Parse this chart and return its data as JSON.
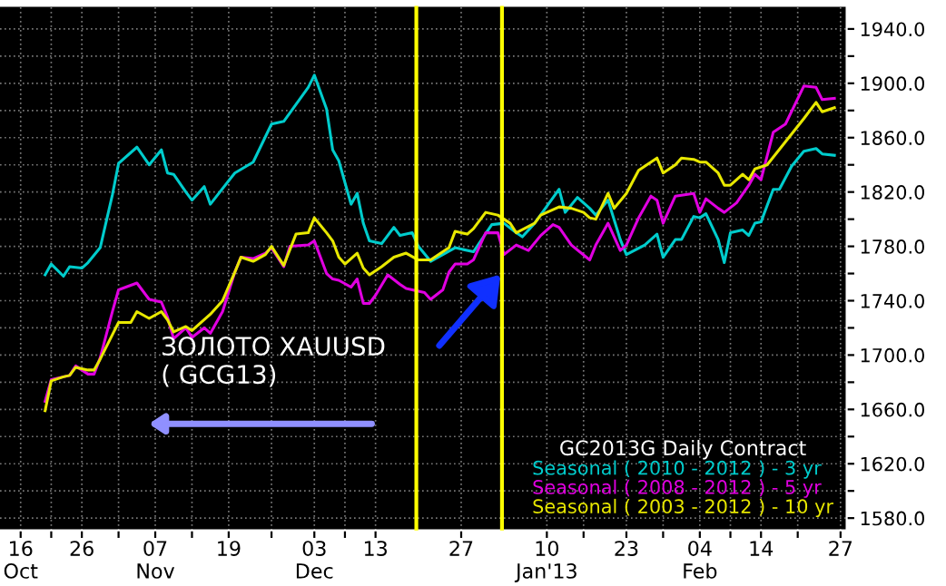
{
  "chart_data": {
    "type": "line",
    "legend_title": "GC2013G Daily Contract",
    "annotations": [
      "ЗОЛОТО XAUUSD\n( GCG13)"
    ],
    "series": [
      {
        "name": "Seasonal ( 2010 - 2012 ) - 3 yr",
        "color": "#00cccc",
        "x": [
          "2012-10-20",
          "2012-10-21",
          "2012-10-23",
          "2012-10-24",
          "2012-10-26",
          "2012-10-27",
          "2012-10-29",
          "2012-10-31",
          "2012-11-01",
          "2012-11-04",
          "2012-11-06",
          "2012-11-08",
          "2012-11-09",
          "2012-11-10",
          "2012-11-12",
          "2012-11-13",
          "2012-11-15",
          "2012-11-16",
          "2012-11-20",
          "2012-11-23",
          "2012-11-26",
          "2012-11-28",
          "2012-12-02",
          "2012-12-03",
          "2012-12-05",
          "2012-12-06",
          "2012-12-07",
          "2012-12-09",
          "2012-12-10",
          "2012-12-11",
          "2012-12-12",
          "2012-12-14",
          "2012-12-16",
          "2012-12-17",
          "2012-12-19",
          "2012-12-20",
          "2012-12-22",
          "2012-12-26",
          "2012-12-29",
          "2013-01-01",
          "2013-01-03",
          "2013-01-05",
          "2013-01-06",
          "2013-01-08",
          "2013-01-12",
          "2013-01-13",
          "2013-01-15",
          "2013-01-17",
          "2013-01-18",
          "2013-01-20",
          "2013-01-22",
          "2013-01-23",
          "2013-01-26",
          "2013-01-28",
          "2013-01-29",
          "2013-01-31",
          "2013-02-01",
          "2013-02-03",
          "2013-02-04",
          "2013-02-05",
          "2013-02-07",
          "2013-02-08",
          "2013-02-09",
          "2013-02-11",
          "2013-02-12",
          "2013-02-13",
          "2013-02-14",
          "2013-02-16",
          "2013-02-17",
          "2013-02-19",
          "2013-02-21",
          "2013-02-23",
          "2013-02-24",
          "2013-02-26"
        ],
        "values": [
          1759,
          1767,
          1758,
          1765,
          1764,
          1768,
          1779,
          1818,
          1841,
          1853,
          1840,
          1851,
          1834,
          1833,
          1820,
          1814,
          1824,
          1811,
          1834,
          1842,
          1870,
          1872,
          1897,
          1906,
          1881,
          1851,
          1843,
          1811,
          1819,
          1797,
          1784,
          1782,
          1794,
          1788,
          1790,
          1780,
          1769,
          1779,
          1776,
          1796,
          1797,
          1790,
          1787,
          1797,
          1822,
          1805,
          1816,
          1808,
          1803,
          1814,
          1785,
          1774,
          1781,
          1789,
          1772,
          1785,
          1785,
          1802,
          1801,
          1804,
          1785,
          1768,
          1790,
          1792,
          1788,
          1797,
          1798,
          1822,
          1822,
          1839,
          1850,
          1852,
          1848,
          1847
        ]
      },
      {
        "name": "Seasonal ( 2008 - 2012 ) - 5 yr",
        "color": "#e000e0",
        "x": [
          "2012-10-20",
          "2012-10-21",
          "2012-10-23",
          "2012-10-24",
          "2012-10-25",
          "2012-10-27",
          "2012-10-28",
          "2012-10-29",
          "2012-10-31",
          "2012-11-01",
          "2012-11-04",
          "2012-11-06",
          "2012-11-08",
          "2012-11-09",
          "2012-11-10",
          "2012-11-12",
          "2012-11-13",
          "2012-11-15",
          "2012-11-16",
          "2012-11-18",
          "2012-11-20",
          "2012-11-21",
          "2012-11-23",
          "2012-11-25",
          "2012-11-26",
          "2012-11-28",
          "2012-11-29",
          "2012-12-02",
          "2012-12-03",
          "2012-12-05",
          "2012-12-06",
          "2012-12-07",
          "2012-12-09",
          "2012-12-10",
          "2012-12-11",
          "2012-12-12",
          "2012-12-13",
          "2012-12-15",
          "2012-12-17",
          "2012-12-18",
          "2012-12-21",
          "2012-12-22",
          "2012-12-24",
          "2012-12-25",
          "2012-12-26",
          "2012-12-28",
          "2012-12-29",
          "2012-12-31",
          "2013-01-02",
          "2013-01-03",
          "2013-01-05",
          "2013-01-07",
          "2013-01-09",
          "2013-01-11",
          "2013-01-12",
          "2013-01-14",
          "2013-01-17",
          "2013-01-18",
          "2013-01-20",
          "2013-01-22",
          "2013-01-23",
          "2013-01-25",
          "2013-01-27",
          "2013-01-28",
          "2013-01-29",
          "2013-01-31",
          "2013-02-03",
          "2013-02-04",
          "2013-02-05",
          "2013-02-07",
          "2013-02-08",
          "2013-02-10",
          "2013-02-12",
          "2013-02-13",
          "2013-02-14",
          "2013-02-16",
          "2013-02-18",
          "2013-02-21",
          "2013-02-23",
          "2013-02-24",
          "2013-02-26"
        ],
        "values": [
          1666,
          1682,
          1684,
          1685,
          1692,
          1686,
          1686,
          1698,
          1732,
          1748,
          1753,
          1741,
          1739,
          1728,
          1712,
          1720,
          1713,
          1720,
          1716,
          1732,
          1761,
          1772,
          1771,
          1775,
          1779,
          1765,
          1780,
          1781,
          1784,
          1760,
          1756,
          1755,
          1750,
          1756,
          1738,
          1738,
          1744,
          1759,
          1752,
          1749,
          1746,
          1741,
          1748,
          1761,
          1767,
          1767,
          1770,
          1790,
          1790,
          1774,
          1781,
          1777,
          1788,
          1796,
          1794,
          1781,
          1770,
          1781,
          1797,
          1777,
          1781,
          1801,
          1817,
          1814,
          1797,
          1817,
          1819,
          1805,
          1815,
          1808,
          1805,
          1812,
          1825,
          1833,
          1829,
          1864,
          1870,
          1898,
          1897,
          1888,
          1889
        ]
      },
      {
        "name": "Seasonal ( 2003 - 2012 ) - 10 yr",
        "color": "#e8e800",
        "x": [
          "2012-10-20",
          "2012-10-21",
          "2012-10-23",
          "2012-10-24",
          "2012-10-25",
          "2012-10-27",
          "2012-10-28",
          "2012-10-29",
          "2012-10-31",
          "2012-11-01",
          "2012-11-03",
          "2012-11-04",
          "2012-11-06",
          "2012-11-08",
          "2012-11-09",
          "2012-11-10",
          "2012-11-12",
          "2012-11-13",
          "2012-11-15",
          "2012-11-16",
          "2012-11-18",
          "2012-11-20",
          "2012-11-21",
          "2012-11-23",
          "2012-11-25",
          "2012-11-26",
          "2012-11-28",
          "2012-11-30",
          "2012-12-02",
          "2012-12-03",
          "2012-12-05",
          "2012-12-06",
          "2012-12-07",
          "2012-12-08",
          "2012-12-10",
          "2012-12-11",
          "2012-12-12",
          "2012-12-14",
          "2012-12-16",
          "2012-12-18",
          "2012-12-20",
          "2012-12-22",
          "2012-12-25",
          "2012-12-26",
          "2012-12-28",
          "2012-12-29",
          "2012-12-31",
          "2013-01-02",
          "2013-01-04",
          "2013-01-05",
          "2013-01-08",
          "2013-01-09",
          "2013-01-12",
          "2013-01-14",
          "2013-01-16",
          "2013-01-17",
          "2013-01-18",
          "2013-01-20",
          "2013-01-21",
          "2013-01-23",
          "2013-01-25",
          "2013-01-28",
          "2013-01-29",
          "2013-01-31",
          "2013-02-01",
          "2013-02-03",
          "2013-02-04",
          "2013-02-05",
          "2013-02-07",
          "2013-02-08",
          "2013-02-09",
          "2013-02-11",
          "2013-02-12",
          "2013-02-13",
          "2013-02-15",
          "2013-02-18",
          "2013-02-21",
          "2013-02-23",
          "2013-02-24",
          "2013-02-26"
        ],
        "values": [
          1659,
          1681,
          1684,
          1685,
          1691,
          1689,
          1689,
          1697,
          1715,
          1724,
          1724,
          1732,
          1727,
          1732,
          1726,
          1717,
          1721,
          1718,
          1726,
          1730,
          1740,
          1761,
          1772,
          1769,
          1774,
          1780,
          1766,
          1789,
          1790,
          1801,
          1790,
          1784,
          1772,
          1767,
          1775,
          1764,
          1759,
          1765,
          1772,
          1775,
          1770,
          1770,
          1779,
          1791,
          1789,
          1793,
          1805,
          1803,
          1797,
          1790,
          1797,
          1803,
          1809,
          1808,
          1805,
          1801,
          1800,
          1819,
          1808,
          1819,
          1836,
          1845,
          1834,
          1840,
          1845,
          1844,
          1842,
          1842,
          1834,
          1825,
          1825,
          1833,
          1829,
          1837,
          1840,
          1857,
          1874,
          1886,
          1879,
          1882
        ]
      }
    ],
    "xlim": [
      "2012-10-12T15:00",
      "2013-02-28"
    ],
    "xticks": [
      {
        "value": "2012-10-16",
        "label": "16\nOct"
      },
      {
        "value": "2012-10-21",
        "label": null
      },
      {
        "value": "2012-10-26",
        "label": "26"
      },
      {
        "value": "2012-11-01",
        "label": null
      },
      {
        "value": "2012-11-07",
        "label": "07\nNov"
      },
      {
        "value": "2012-11-13",
        "label": null
      },
      {
        "value": "2012-11-19",
        "label": "19"
      },
      {
        "value": "2012-11-26",
        "label": null
      },
      {
        "value": "2012-12-03",
        "label": "03\nDec"
      },
      {
        "value": "2012-12-08",
        "label": null
      },
      {
        "value": "2012-12-13",
        "label": "13"
      },
      {
        "value": "2012-12-27",
        "label": "27"
      },
      {
        "value": "2013-01-10",
        "label": "10\nJan'13"
      },
      {
        "value": "2013-01-16",
        "label": null
      },
      {
        "value": "2013-01-23",
        "label": "23"
      },
      {
        "value": "2013-01-29",
        "label": null
      },
      {
        "value": "2013-02-04",
        "label": "04\nFeb"
      },
      {
        "value": "2013-02-09",
        "label": null
      },
      {
        "value": "2013-02-14",
        "label": "14"
      },
      {
        "value": "2013-02-20",
        "label": null
      },
      {
        "value": "2013-02-27",
        "label": "27"
      }
    ],
    "ylim": [
      1571,
      1957
    ],
    "yticks": [
      {
        "value": 1580,
        "label": "1580.0"
      },
      {
        "value": 1600,
        "label": null
      },
      {
        "value": 1620,
        "label": "1620.0"
      },
      {
        "value": 1640,
        "label": null
      },
      {
        "value": 1660,
        "label": "1660.0"
      },
      {
        "value": 1680,
        "label": null
      },
      {
        "value": 1700,
        "label": "1700.0"
      },
      {
        "value": 1720,
        "label": null
      },
      {
        "value": 1740,
        "label": "1740.0"
      },
      {
        "value": 1760,
        "label": null
      },
      {
        "value": 1780,
        "label": "1780.0"
      },
      {
        "value": 1800,
        "label": null
      },
      {
        "value": 1820,
        "label": "1820.0"
      },
      {
        "value": 1840,
        "label": null
      },
      {
        "value": 1860,
        "label": "1860.0"
      },
      {
        "value": 1880,
        "label": null
      },
      {
        "value": 1900,
        "label": "1900.0"
      },
      {
        "value": 1920,
        "label": null
      },
      {
        "value": 1940,
        "label": "1940.0"
      }
    ],
    "ref_lines": [
      {
        "axis": "x",
        "value": "2012-12-19T16:00",
        "color": "#ffff00"
      },
      {
        "axis": "x",
        "value": "2013-01-02T16:00",
        "color": "#ffff00"
      }
    ],
    "grid": true,
    "legend": "bottom right",
    "marker": "none",
    "line_style": "solid"
  }
}
